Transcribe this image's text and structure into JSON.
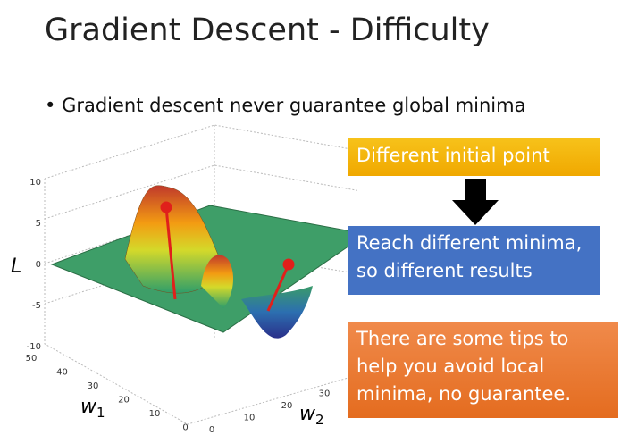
{
  "title": "Gradient Descent - Difficulty",
  "bullet": "Gradient descent never guarantee global minima",
  "plot": {
    "z_label": "L",
    "x_label": "w",
    "x_label_sub": "1",
    "y_label": "w",
    "y_label_sub": "2",
    "z_ticks": [
      "10",
      "5",
      "0",
      "-5",
      "-10"
    ],
    "w1_ticks": [
      "50",
      "40",
      "30",
      "20",
      "10",
      "0"
    ],
    "w2_ticks": [
      "0",
      "10",
      "20",
      "30"
    ]
  },
  "boxes": [
    {
      "lines": [
        "Different initial point"
      ]
    },
    {
      "lines": [
        "Reach different minima,",
        "so different results"
      ]
    },
    {
      "lines": [
        "There are some tips to",
        "help you avoid local",
        "minima, no guarantee."
      ]
    }
  ]
}
